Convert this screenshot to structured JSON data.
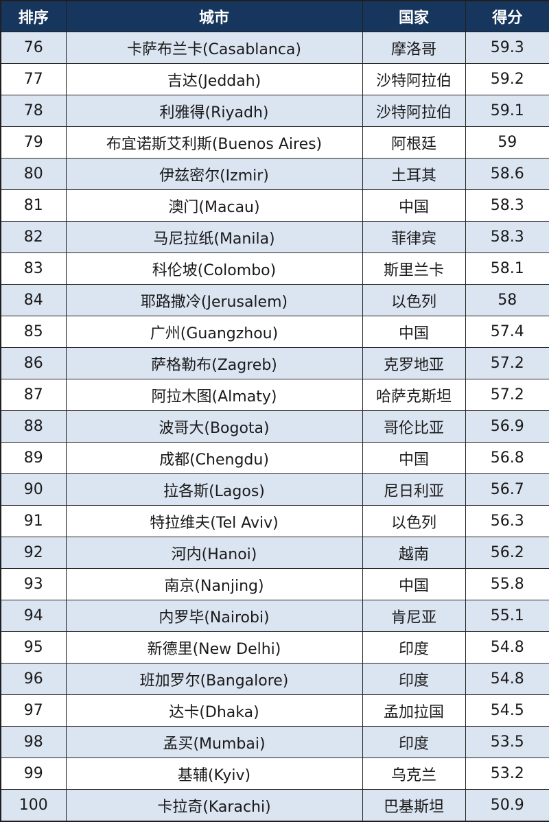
{
  "table": {
    "headers": {
      "rank": "排序",
      "city": "城市",
      "country": "国家",
      "score": "得分"
    },
    "rows": [
      {
        "rank": "76",
        "city": "卡萨布兰卡(Casablanca)",
        "country": "摩洛哥",
        "score": "59.3"
      },
      {
        "rank": "77",
        "city": "吉达(Jeddah)",
        "country": "沙特阿拉伯",
        "score": "59.2"
      },
      {
        "rank": "78",
        "city": "利雅得(Riyadh)",
        "country": "沙特阿拉伯",
        "score": "59.1"
      },
      {
        "rank": "79",
        "city": "布宜诺斯艾利斯(Buenos Aires)",
        "country": "阿根廷",
        "score": "59"
      },
      {
        "rank": "80",
        "city": "伊兹密尔(Izmir)",
        "country": "土耳其",
        "score": "58.6"
      },
      {
        "rank": "81",
        "city": "澳门(Macau)",
        "country": "中国",
        "score": "58.3"
      },
      {
        "rank": "82",
        "city": "马尼拉纸(Manila)",
        "country": "菲律宾",
        "score": "58.3"
      },
      {
        "rank": "83",
        "city": "科伦坡(Colombo)",
        "country": "斯里兰卡",
        "score": "58.1"
      },
      {
        "rank": "84",
        "city": "耶路撒冷(Jerusalem)",
        "country": "以色列",
        "score": "58"
      },
      {
        "rank": "85",
        "city": "广州(Guangzhou)",
        "country": "中国",
        "score": "57.4"
      },
      {
        "rank": "86",
        "city": "萨格勒布(Zagreb)",
        "country": "克罗地亚",
        "score": "57.2"
      },
      {
        "rank": "87",
        "city": "阿拉木图(Almaty)",
        "country": "哈萨克斯坦",
        "score": "57.2"
      },
      {
        "rank": "88",
        "city": "波哥大(Bogota)",
        "country": "哥伦比亚",
        "score": "56.9"
      },
      {
        "rank": "89",
        "city": "成都(Chengdu)",
        "country": "中国",
        "score": "56.8"
      },
      {
        "rank": "90",
        "city": "拉各斯(Lagos)",
        "country": "尼日利亚",
        "score": "56.7"
      },
      {
        "rank": "91",
        "city": "特拉维夫(Tel Aviv)",
        "country": "以色列",
        "score": "56.3"
      },
      {
        "rank": "92",
        "city": "河内(Hanoi)",
        "country": "越南",
        "score": "56.2"
      },
      {
        "rank": "93",
        "city": "南京(Nanjing)",
        "country": "中国",
        "score": "55.8"
      },
      {
        "rank": "94",
        "city": "内罗毕(Nairobi)",
        "country": "肯尼亚",
        "score": "55.1"
      },
      {
        "rank": "95",
        "city": "新德里(New Delhi)",
        "country": "印度",
        "score": "54.8"
      },
      {
        "rank": "96",
        "city": "班加罗尔(Bangalore)",
        "country": "印度",
        "score": "54.8"
      },
      {
        "rank": "97",
        "city": "达卡(Dhaka)",
        "country": "孟加拉国",
        "score": "54.5"
      },
      {
        "rank": "98",
        "city": "孟买(Mumbai)",
        "country": "印度",
        "score": "53.5"
      },
      {
        "rank": "99",
        "city": "基辅(Kyiv)",
        "country": "乌克兰",
        "score": "53.2"
      },
      {
        "rank": "100",
        "city": "卡拉奇(Karachi)",
        "country": "巴基斯坦",
        "score": "50.9"
      }
    ]
  },
  "colors": {
    "header_bg": "#17365d",
    "header_text": "#ffffff",
    "row_band": "#dbe4f1",
    "row_plain": "#ffffff",
    "grid": "#222222"
  }
}
